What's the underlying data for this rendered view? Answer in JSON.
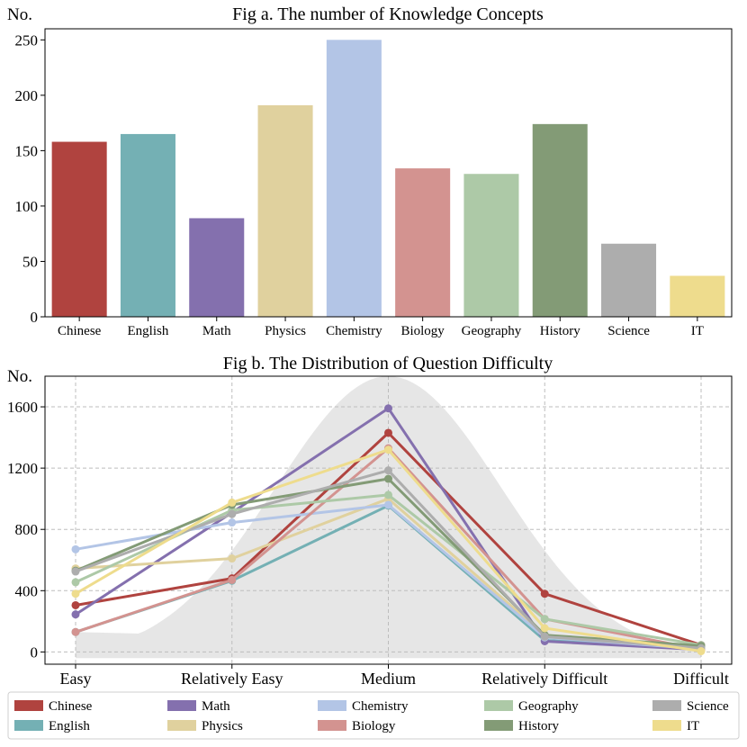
{
  "chart_data": [
    {
      "type": "bar",
      "title": "Fig a. The number of Knowledge Concepts",
      "ylabel": "No.",
      "xlabel": "",
      "ylim": [
        0,
        260
      ],
      "yticks": [
        0,
        50,
        100,
        150,
        200,
        250
      ],
      "categories": [
        "Chinese",
        "English",
        "Math",
        "Physics",
        "Chemistry",
        "Biology",
        "Geography",
        "History",
        "Science",
        "IT"
      ],
      "values": [
        158,
        165,
        89,
        191,
        250,
        134,
        129,
        174,
        66,
        37
      ],
      "colors": [
        "#b0433f",
        "#74b0b4",
        "#8470ae",
        "#e0d19e",
        "#b3c5e6",
        "#d39390",
        "#adc9a7",
        "#839b76",
        "#adadad",
        "#eedc8d"
      ]
    },
    {
      "type": "line",
      "title": "Fig b. The Distribution of Question Difficulty",
      "ylabel": "No.",
      "xlabel": "",
      "ylim": [
        -80,
        1800
      ],
      "yticks": [
        0,
        400,
        800,
        1200,
        1600
      ],
      "grid": true,
      "legend": "bottom",
      "categories": [
        "Easy",
        "Relatively Easy",
        "Medium",
        "Relatively Difficult",
        "Difficult"
      ],
      "series": [
        {
          "name": "Chinese",
          "color": "#b0433f",
          "values": [
            305,
            480,
            1430,
            380,
            45
          ]
        },
        {
          "name": "English",
          "color": "#74b0b4",
          "values": [
            130,
            465,
            955,
            75,
            35
          ]
        },
        {
          "name": "Math",
          "color": "#8470ae",
          "values": [
            245,
            910,
            1590,
            70,
            15
          ]
        },
        {
          "name": "Physics",
          "color": "#e0d19e",
          "values": [
            545,
            610,
            1000,
            110,
            25
          ]
        },
        {
          "name": "Chemistry",
          "color": "#b3c5e6",
          "values": [
            670,
            845,
            960,
            95,
            20
          ]
        },
        {
          "name": "Biology",
          "color": "#d39390",
          "values": [
            130,
            470,
            1330,
            215,
            15
          ]
        },
        {
          "name": "Geography",
          "color": "#adc9a7",
          "values": [
            455,
            925,
            1025,
            215,
            45
          ]
        },
        {
          "name": "History",
          "color": "#839b76",
          "values": [
            530,
            960,
            1130,
            110,
            40
          ]
        },
        {
          "name": "Science",
          "color": "#adadad",
          "values": [
            525,
            900,
            1185,
            100,
            25
          ]
        },
        {
          "name": "IT",
          "color": "#eedc8d",
          "values": [
            380,
            975,
            1320,
            155,
            5
          ]
        }
      ]
    }
  ]
}
